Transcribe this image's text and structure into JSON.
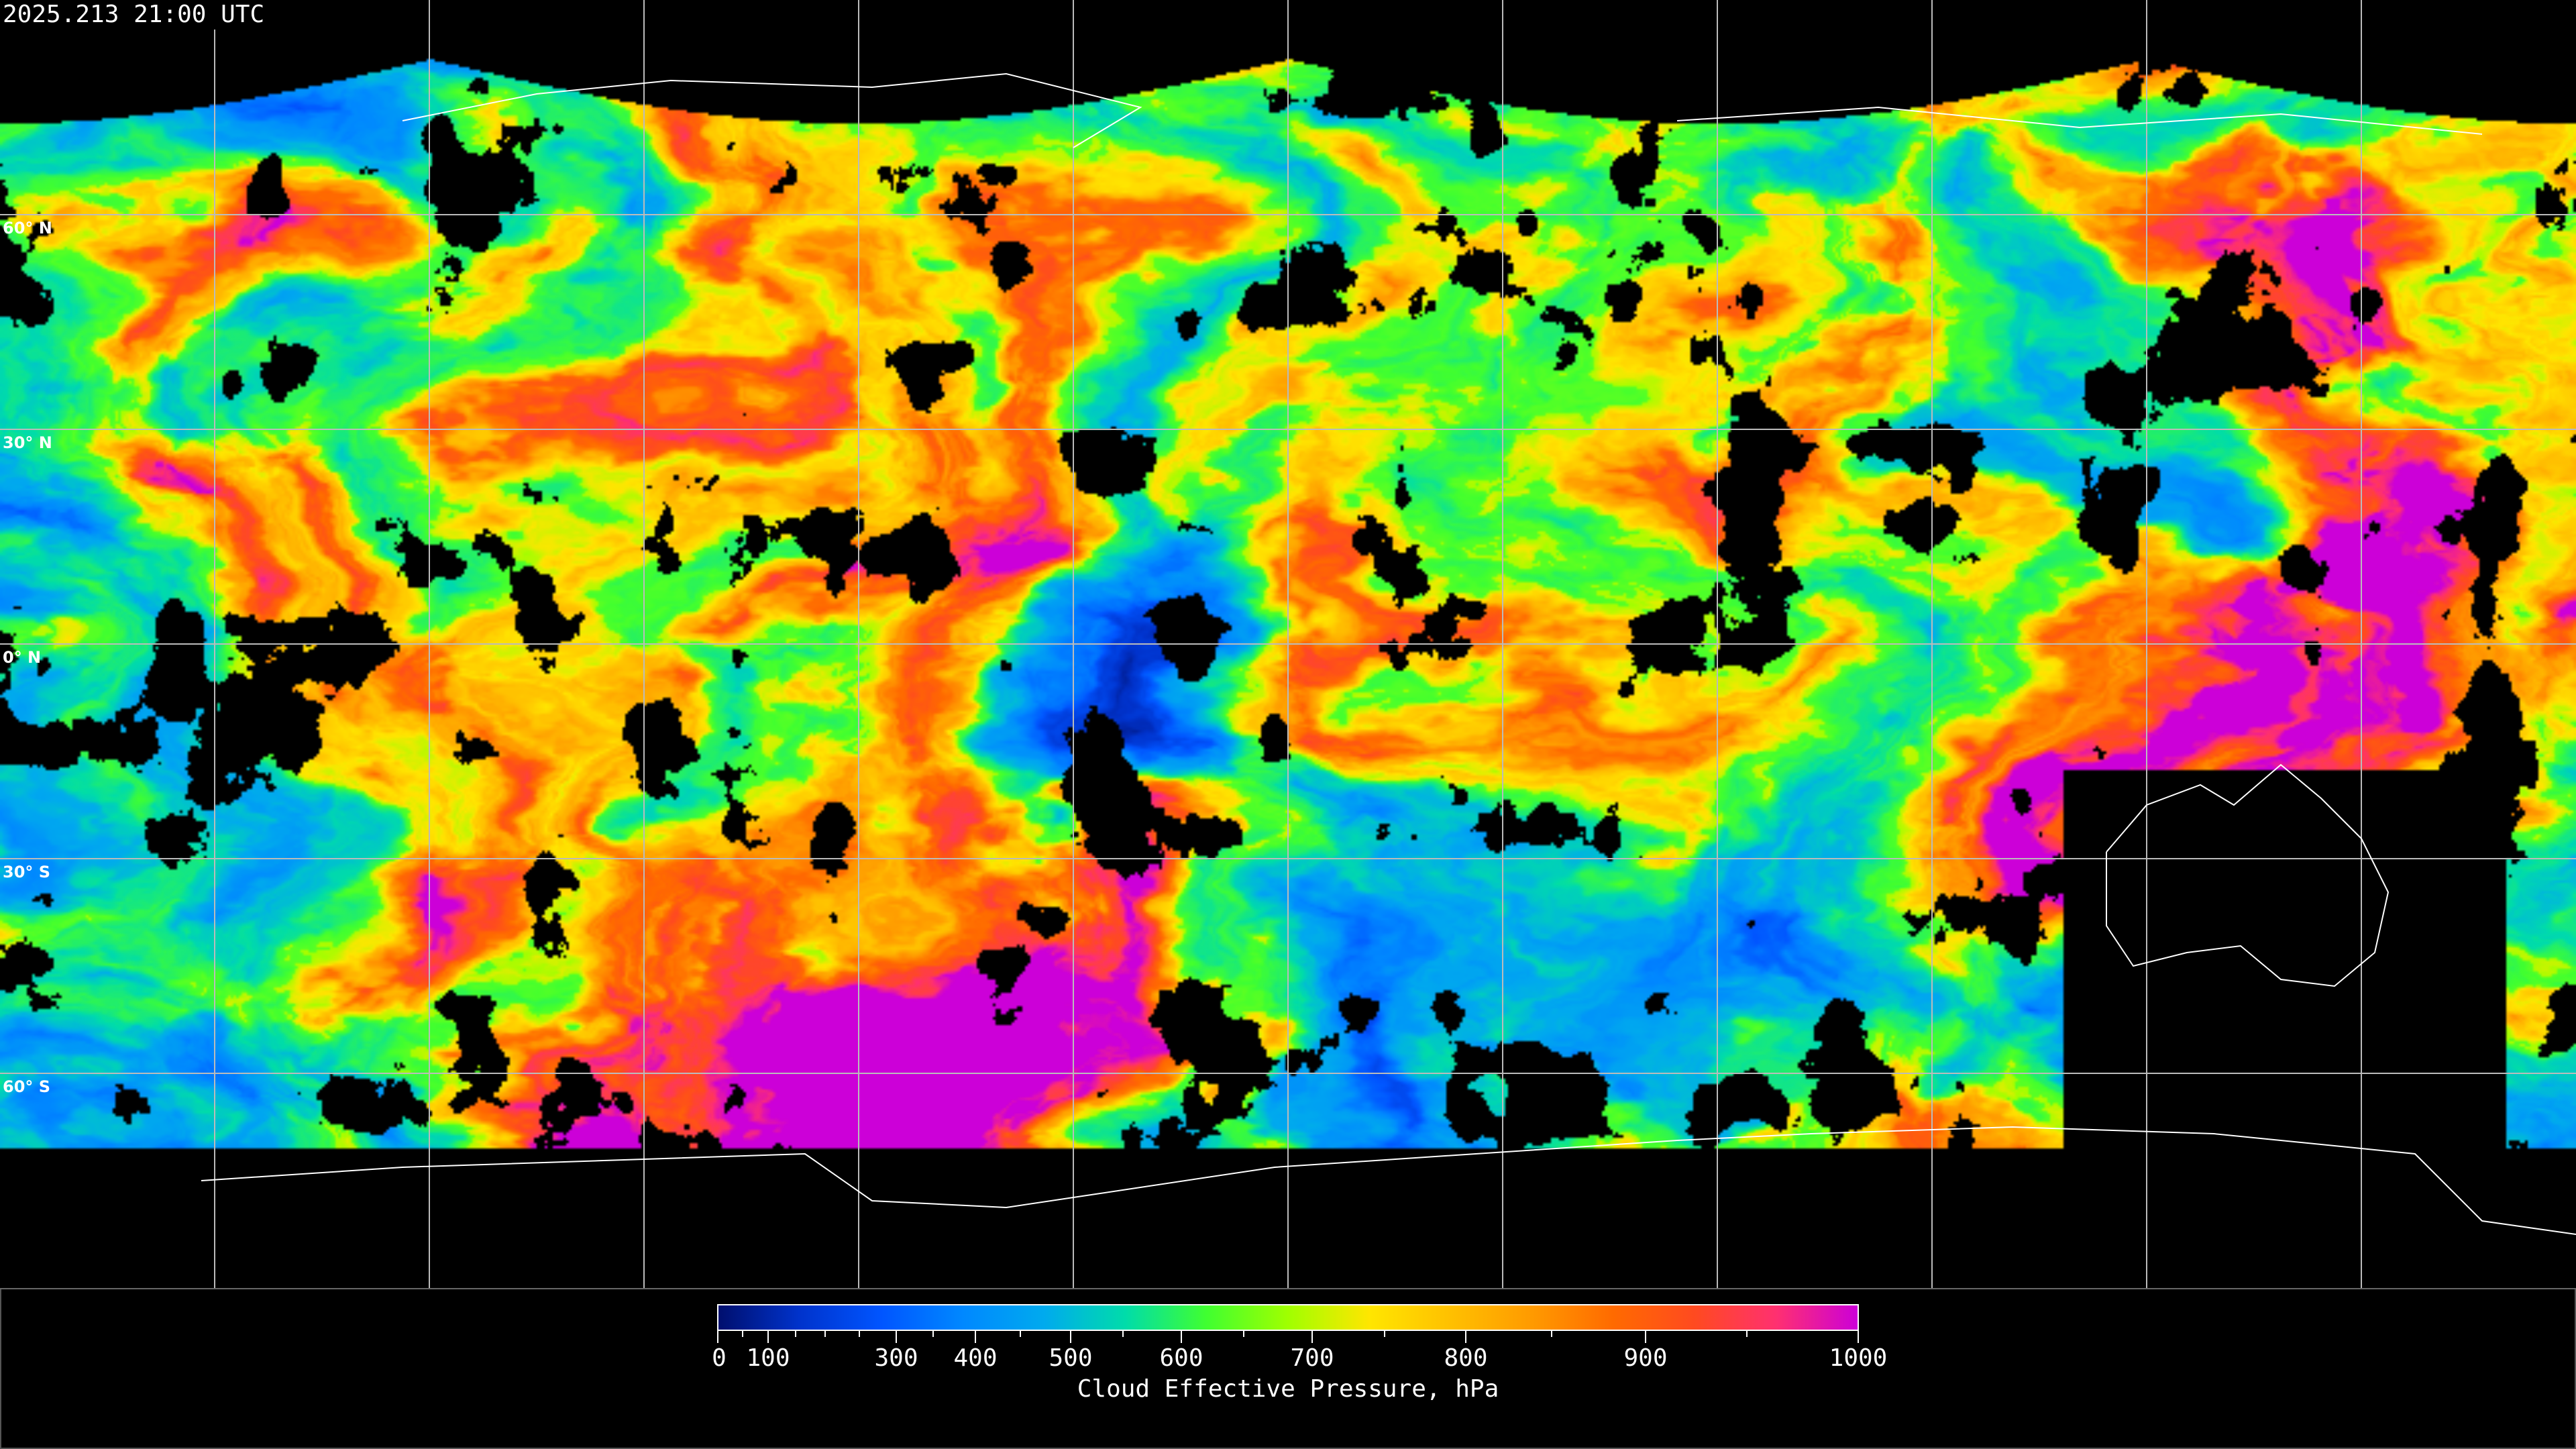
{
  "timestamp": "2025.213 21:00 UTC",
  "map": {
    "latitude_labels": [
      "60° N",
      "30° N",
      "0° N",
      "30° S",
      "60° S"
    ],
    "graticule_spacing_degrees": 30
  },
  "colorbar": {
    "title": "Cloud Effective Pressure, hPa",
    "tick_labels": [
      "0",
      "100",
      "300",
      "400",
      "500",
      "600",
      "700",
      "800",
      "900",
      "1000"
    ],
    "range": [
      0,
      1000
    ],
    "colormap": [
      "#000f6e",
      "#0033cc",
      "#0055ff",
      "#0088ff",
      "#00aaee",
      "#00dcaa",
      "#40ff30",
      "#a0ff00",
      "#ffe600",
      "#ffc000",
      "#ff9a00",
      "#ff6a00",
      "#ff4a20",
      "#ff3070",
      "#cc00d8"
    ],
    "no_data_color": "#000000"
  }
}
